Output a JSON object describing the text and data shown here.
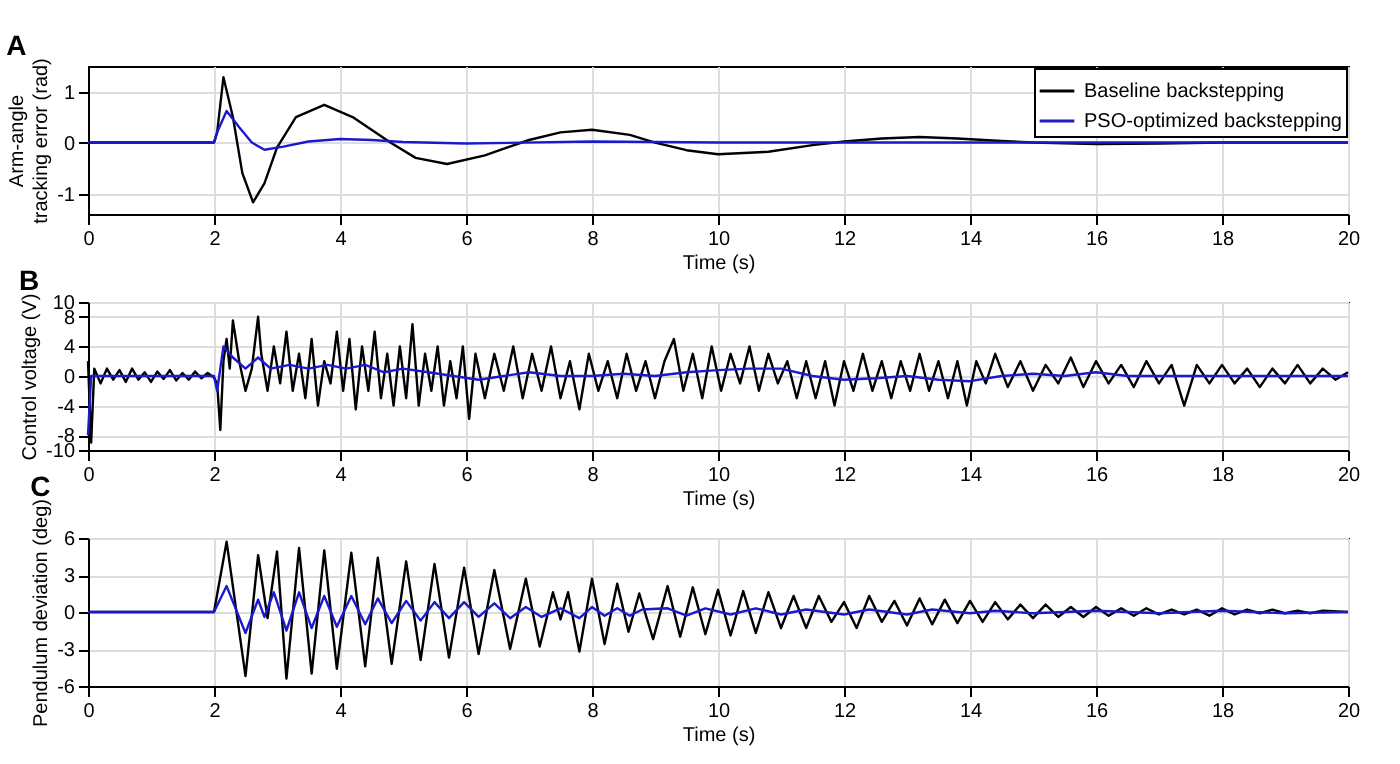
{
  "chart_data": [
    {
      "type": "line",
      "title": "A",
      "xlabel": "Time (s)",
      "ylabel": "Arm-angle\ntracking error (rad)",
      "xlim": [
        0,
        20
      ],
      "xticks": [
        0,
        2,
        4,
        6,
        8,
        10,
        12,
        14,
        16,
        18,
        20
      ],
      "ylim": [
        -1.4,
        1.5
      ],
      "yticks": [
        -1,
        0,
        1
      ],
      "grid": true,
      "legend": "top right",
      "line_style": "solid",
      "series": [
        {
          "name": "Baseline backstepping",
          "color": "#000000",
          "x": [
            0,
            2,
            2.05,
            2.15,
            2.3,
            2.45,
            2.62,
            2.8,
            3,
            3.3,
            3.75,
            4.2,
            4.8,
            5.2,
            5.7,
            6.3,
            7,
            7.5,
            8,
            8.6,
            9,
            9.5,
            10,
            10.8,
            11.5,
            12,
            12.6,
            13.2,
            13.8,
            14.5,
            15,
            16,
            17,
            18,
            20
          ],
          "values": [
            0,
            0,
            0.2,
            1.28,
            0.5,
            -0.6,
            -1.17,
            -0.8,
            -0.1,
            0.5,
            0.74,
            0.5,
            0,
            -0.3,
            -0.42,
            -0.25,
            0.05,
            0.2,
            0.25,
            0.15,
            0,
            -0.15,
            -0.23,
            -0.18,
            -0.05,
            0.02,
            0.08,
            0.11,
            0.08,
            0.03,
            0,
            -0.03,
            -0.02,
            0,
            0
          ]
        },
        {
          "name": "PSO-optimized backstepping",
          "color": "#1a1acc",
          "x": [
            0,
            2,
            2.05,
            2.2,
            2.4,
            2.6,
            2.8,
            3.1,
            3.5,
            4,
            4.5,
            5,
            6,
            8,
            10,
            20
          ],
          "values": [
            0,
            0,
            0.2,
            0.62,
            0.3,
            0,
            -0.14,
            -0.08,
            0.02,
            0.07,
            0.05,
            0.01,
            -0.02,
            0.02,
            0,
            0
          ]
        }
      ]
    },
    {
      "type": "line",
      "title": "B",
      "xlabel": "Time (s)",
      "ylabel": "Control voltage (V)",
      "xlim": [
        0,
        20
      ],
      "xticks": [
        0,
        2,
        4,
        6,
        8,
        10,
        12,
        14,
        16,
        18,
        20
      ],
      "ylim": [
        -10,
        10
      ],
      "yticks": [
        -10,
        -8,
        -4,
        0,
        4,
        8,
        10
      ],
      "grid": true,
      "legend": "top right",
      "line_style": "solid",
      "series": [
        {
          "name": "Baseline backstepping",
          "color": "#000000",
          "x": [
            0,
            0.05,
            0.1,
            0.2,
            0.3,
            0.4,
            0.5,
            0.6,
            0.7,
            0.8,
            0.9,
            1.0,
            1.1,
            1.2,
            1.3,
            1.4,
            1.5,
            1.6,
            1.7,
            1.8,
            1.9,
            2.0,
            2.05,
            2.1,
            2.15,
            2.2,
            2.25,
            2.3,
            2.4,
            2.5,
            2.6,
            2.7,
            2.75,
            2.85,
            2.95,
            3.05,
            3.15,
            3.25,
            3.35,
            3.45,
            3.55,
            3.65,
            3.75,
            3.85,
            3.95,
            4.05,
            4.15,
            4.25,
            4.35,
            4.45,
            4.55,
            4.65,
            4.75,
            4.85,
            4.95,
            5.05,
            5.15,
            5.25,
            5.35,
            5.45,
            5.55,
            5.65,
            5.75,
            5.85,
            5.95,
            6.05,
            6.15,
            6.3,
            6.45,
            6.6,
            6.75,
            6.9,
            7.05,
            7.2,
            7.35,
            7.5,
            7.65,
            7.8,
            7.95,
            8.1,
            8.25,
            8.4,
            8.55,
            8.7,
            8.85,
            9.0,
            9.15,
            9.3,
            9.45,
            9.6,
            9.75,
            9.9,
            10.05,
            10.2,
            10.35,
            10.5,
            10.65,
            10.8,
            10.95,
            11.1,
            11.25,
            11.4,
            11.55,
            11.7,
            11.85,
            12.0,
            12.15,
            12.3,
            12.45,
            12.6,
            12.75,
            12.9,
            13.05,
            13.2,
            13.35,
            13.5,
            13.65,
            13.8,
            13.95,
            14.1,
            14.25,
            14.4,
            14.6,
            14.8,
            15.0,
            15.2,
            15.4,
            15.6,
            15.8,
            16.0,
            16.2,
            16.4,
            16.6,
            16.8,
            17.0,
            17.2,
            17.4,
            17.6,
            17.8,
            18.0,
            18.2,
            18.4,
            18.6,
            18.8,
            19.0,
            19.2,
            19.4,
            19.6,
            19.8,
            20.0
          ],
          "values": [
            2,
            -9,
            1,
            -1,
            1,
            -0.5,
            0.8,
            -0.8,
            1,
            -0.5,
            0.5,
            -0.8,
            0.6,
            -0.4,
            0.8,
            -0.6,
            0.4,
            -0.5,
            0.6,
            -0.3,
            0.4,
            -0.2,
            -1,
            -7.3,
            2,
            5,
            1,
            7.5,
            2,
            -2,
            1,
            8,
            3,
            -2,
            4,
            -1,
            6,
            -2,
            3,
            -3,
            5,
            -4,
            2,
            -1,
            6,
            -2,
            5,
            -4.5,
            4,
            -2,
            6,
            -3,
            3,
            -4,
            4,
            -3,
            7,
            -4,
            3,
            -2,
            4,
            -4,
            2,
            -3,
            4,
            -5.8,
            3,
            -3,
            3,
            -2,
            4,
            -3,
            3,
            -2,
            4,
            -3,
            2,
            -4.5,
            3,
            -2,
            2,
            -3,
            3,
            -2,
            2,
            -3,
            2,
            5,
            -2,
            3,
            -3,
            4,
            -2,
            3,
            -1,
            4,
            -2,
            3,
            -1,
            2,
            -3,
            2,
            -3,
            2,
            -4,
            2,
            -2,
            3,
            -2,
            2,
            -3,
            2,
            -2,
            3,
            -2,
            2,
            -3,
            2,
            -4,
            2,
            -1,
            3,
            -1.5,
            2,
            -2,
            1.5,
            -1,
            2.5,
            -1.5,
            2,
            -1,
            1.5,
            -1.5,
            2,
            -1,
            1.5,
            -4,
            1.5,
            -1,
            1.5,
            -1,
            1,
            -1.5,
            1,
            -1,
            1.5,
            -1,
            1,
            -0.5,
            0.5
          ]
        },
        {
          "name": "PSO-optimized backstepping",
          "color": "#1a1acc",
          "x": [
            0,
            0.05,
            0.5,
            1,
            1.5,
            2,
            2.05,
            2.15,
            2.3,
            2.5,
            2.7,
            2.9,
            3.2,
            3.5,
            3.8,
            4.1,
            4.4,
            4.7,
            5,
            5.4,
            5.8,
            6.2,
            6.6,
            7,
            7.5,
            8,
            8.5,
            9,
            9.5,
            10,
            10.5,
            11,
            11.5,
            12,
            12.5,
            13,
            13.5,
            14,
            14.5,
            15,
            15.5,
            16,
            16.5,
            17,
            18,
            19,
            20
          ],
          "values": [
            -8,
            0,
            0,
            0,
            0,
            0,
            -2,
            4,
            2.5,
            1,
            2.5,
            1,
            1.5,
            1,
            1.5,
            1,
            1.5,
            0.5,
            1,
            0.5,
            0,
            -0.5,
            0,
            0.5,
            0,
            0,
            0.3,
            0,
            0.5,
            0.8,
            1,
            1,
            0,
            -0.5,
            -0.3,
            0,
            -0.5,
            -0.7,
            0,
            0.3,
            0,
            0.5,
            0,
            0,
            0,
            0,
            0
          ]
        }
      ]
    },
    {
      "type": "line",
      "title": "C",
      "xlabel": "Time (s)",
      "ylabel": "Pendulum deviation (deg)",
      "xlim": [
        0,
        20
      ],
      "xticks": [
        0,
        2,
        4,
        6,
        8,
        10,
        12,
        14,
        16,
        18,
        20
      ],
      "ylim": [
        -6,
        6
      ],
      "yticks": [
        -6,
        -3,
        0,
        3,
        6
      ],
      "grid": true,
      "legend": "top right",
      "line_style": "solid",
      "series": [
        {
          "name": "Baseline backstepping",
          "color": "#000000",
          "x": [
            0,
            2.0,
            2.2,
            2.5,
            2.7,
            2.85,
            3.0,
            3.15,
            3.35,
            3.55,
            3.75,
            3.95,
            4.18,
            4.4,
            4.6,
            4.82,
            5.05,
            5.28,
            5.5,
            5.73,
            5.97,
            6.2,
            6.45,
            6.7,
            6.95,
            7.17,
            7.38,
            7.5,
            7.62,
            7.8,
            8.0,
            8.2,
            8.4,
            8.58,
            8.75,
            8.97,
            9.2,
            9.4,
            9.6,
            9.8,
            10.0,
            10.2,
            10.4,
            10.6,
            10.8,
            11.0,
            11.2,
            11.4,
            11.6,
            11.8,
            12.0,
            12.2,
            12.4,
            12.6,
            12.8,
            13.0,
            13.2,
            13.4,
            13.6,
            13.8,
            14.0,
            14.2,
            14.4,
            14.6,
            14.8,
            15.0,
            15.2,
            15.4,
            15.6,
            15.8,
            16.0,
            16.2,
            16.4,
            16.6,
            16.8,
            17.0,
            17.2,
            17.4,
            17.6,
            17.8,
            18.0,
            18.2,
            18.4,
            18.6,
            18.8,
            19.0,
            19.2,
            19.4,
            19.6,
            20.0
          ],
          "values": [
            0,
            0,
            5.7,
            -5.2,
            4.6,
            -0.5,
            4.9,
            -5.4,
            5.2,
            -5.0,
            5.0,
            -4.6,
            4.8,
            -4.4,
            4.4,
            -4.2,
            4.1,
            -3.9,
            3.9,
            -3.7,
            3.6,
            -3.4,
            3.4,
            -3.0,
            2.7,
            -2.8,
            1.6,
            -0.6,
            1.6,
            -3.2,
            2.7,
            -2.6,
            2.3,
            -1.6,
            1.5,
            -2.2,
            2.1,
            -2.0,
            2.0,
            -1.8,
            1.8,
            -1.9,
            1.7,
            -1.7,
            1.6,
            -1.3,
            1.3,
            -1.3,
            1.3,
            -0.8,
            0.8,
            -1.3,
            1.3,
            -0.8,
            0.9,
            -1.1,
            1.1,
            -1.0,
            1.0,
            -0.9,
            0.9,
            -0.8,
            0.8,
            -0.6,
            0.6,
            -0.5,
            0.6,
            -0.4,
            0.4,
            -0.4,
            0.4,
            -0.3,
            0.3,
            -0.3,
            0.3,
            -0.2,
            0.2,
            -0.2,
            0.2,
            -0.3,
            0.3,
            -0.2,
            0.2,
            -0.1,
            0.2,
            -0.1,
            0.1,
            -0.1,
            0.1,
            0
          ]
        },
        {
          "name": "PSO-optimized backstepping",
          "color": "#1a1acc",
          "x": [
            0,
            2.0,
            2.2,
            2.5,
            2.7,
            2.8,
            2.95,
            3.15,
            3.35,
            3.55,
            3.75,
            3.95,
            4.18,
            4.4,
            4.6,
            4.82,
            5.05,
            5.28,
            5.5,
            5.73,
            5.97,
            6.2,
            6.45,
            6.7,
            6.95,
            7.2,
            7.5,
            7.8,
            8.0,
            8.2,
            8.4,
            8.6,
            8.8,
            9.2,
            9.5,
            9.8,
            10.2,
            10.6,
            11.0,
            11.4,
            12.0,
            12.4,
            13.0,
            13.4,
            14.0,
            14.4,
            15.0,
            16.0,
            17.0,
            18.0,
            19.0,
            20.0
          ],
          "values": [
            0,
            0,
            2.1,
            -1.7,
            1.0,
            -0.4,
            1.6,
            -1.5,
            1.6,
            -1.3,
            1.3,
            -1.2,
            1.3,
            -1.0,
            1.1,
            -0.9,
            0.9,
            -0.7,
            0.8,
            -0.5,
            0.8,
            -0.4,
            0.7,
            -0.5,
            0.4,
            -0.4,
            0.3,
            -0.5,
            0.4,
            -0.3,
            0.3,
            -0.3,
            0.2,
            0.3,
            -0.3,
            0.3,
            -0.2,
            0.3,
            -0.2,
            0.2,
            -0.2,
            0.2,
            -0.2,
            0.2,
            -0.1,
            0.1,
            -0.1,
            0.1,
            -0.1,
            0.1,
            -0.1,
            0
          ]
        }
      ]
    }
  ]
}
